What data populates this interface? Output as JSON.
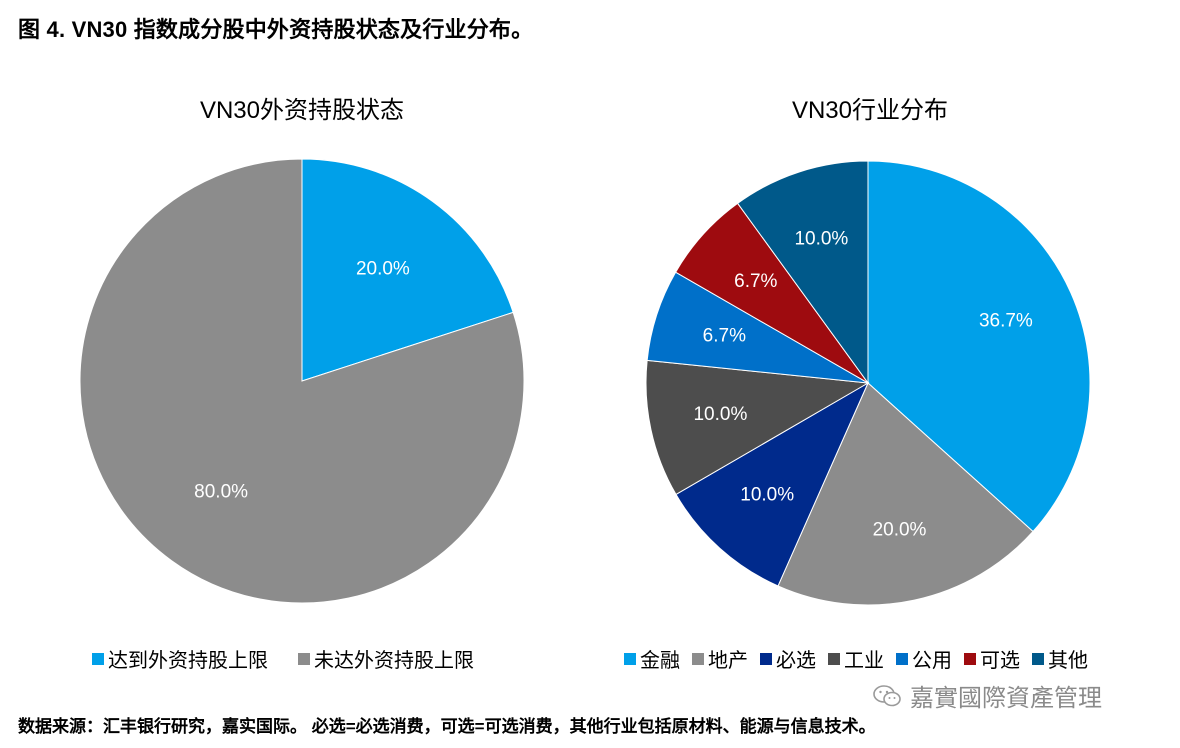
{
  "figure_title": "图 4. VN30 指数成分股中外资持股状态及行业分布。",
  "source_note": "数据来源：汇丰银行研究，嘉实国际。 必选=必选消费，可选=可选消费，其他行业包括原材料、能源与信息技术。",
  "watermark": "嘉實國際資產管理",
  "chart_data": [
    {
      "type": "pie",
      "title": "VN30外资持股状态",
      "labels": [
        "达到外资持股上限",
        "未达外资持股上限"
      ],
      "values": [
        20.0,
        80.0
      ],
      "value_labels": [
        "20.0%",
        "80.0%"
      ],
      "colors": [
        "#00a0e9",
        "#8c8c8c"
      ],
      "legend": "bottom"
    },
    {
      "type": "pie",
      "title": "VN30行业分布",
      "labels": [
        "金融",
        "地产",
        "必选",
        "工业",
        "公用",
        "可选",
        "其他"
      ],
      "values": [
        36.7,
        20.0,
        10.0,
        10.0,
        6.7,
        6.7,
        10.0
      ],
      "value_labels": [
        "36.7%",
        "20.0%",
        "10.0%",
        "10.0%",
        "6.7%",
        "6.7%",
        "10.0%"
      ],
      "colors": [
        "#00a0e9",
        "#8c8c8c",
        "#002a8c",
        "#4d4d4d",
        "#0070c9",
        "#9e0b0f",
        "#00598a"
      ],
      "legend": "bottom"
    }
  ]
}
